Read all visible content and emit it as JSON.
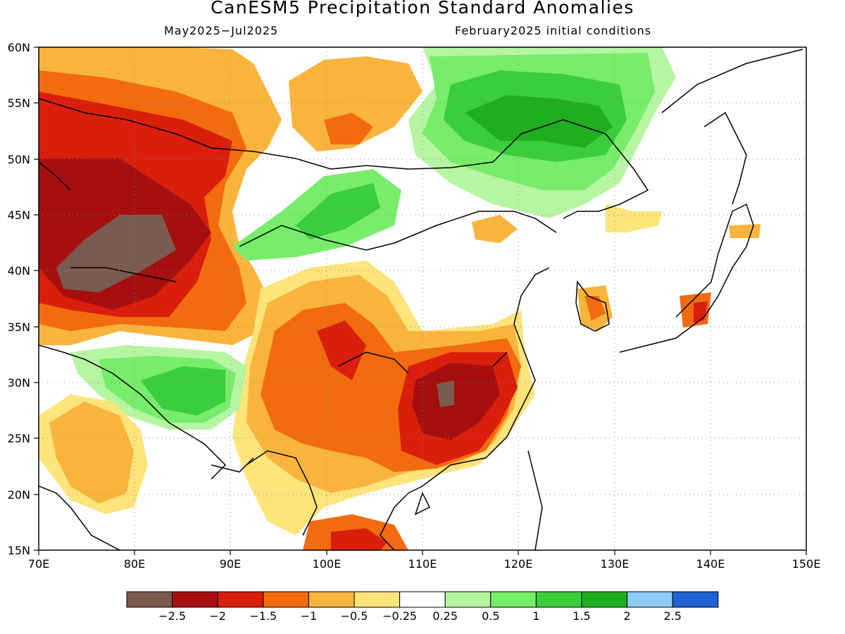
{
  "title": "CanESM5 Precipitation Standard Anomalies",
  "subtitle_left": "May2025−Jul2025",
  "subtitle_right": "February2025 initial conditions",
  "axes": {
    "lon_range": [
      70,
      150
    ],
    "lat_range": [
      15,
      60
    ],
    "lon_ticks": [
      "70E",
      "80E",
      "90E",
      "100E",
      "110E",
      "120E",
      "130E",
      "140E",
      "150E"
    ],
    "lat_ticks": [
      "60N",
      "55N",
      "50N",
      "45N",
      "40N",
      "35N",
      "30N",
      "25N",
      "20N",
      "15N"
    ],
    "grid": "dotted"
  },
  "legend": {
    "placement": "bottom",
    "colors": [
      "#7b5a4f",
      "#a50f0f",
      "#d91e0b",
      "#f26b0f",
      "#f9b43d",
      "#fde47b",
      "#ffffff",
      "#b6f5a2",
      "#78ec6b",
      "#3acd3c",
      "#1fae1f",
      "#8ecbf5",
      "#1f62d0"
    ],
    "labels": [
      "−2.5",
      "−2",
      "−1.5",
      "−1",
      "−0.5",
      "−0.25",
      "0.25",
      "0.5",
      "1",
      "1.5",
      "2",
      "2.5"
    ]
  }
}
